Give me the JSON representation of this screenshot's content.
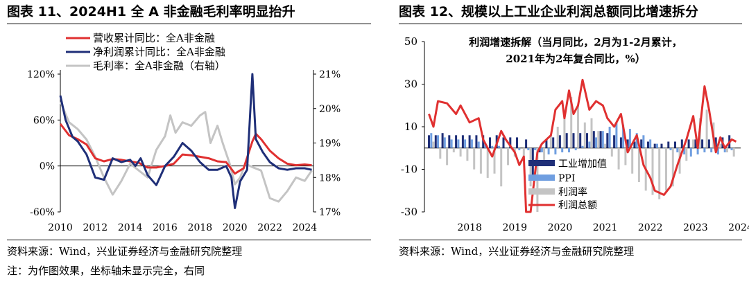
{
  "left": {
    "title": "图表 11、2024H1 全 A 非金融毛利率明显抬升",
    "source": "资料来源：Wind，兴业证券经济与金融研究院整理",
    "note": "注：为作图效果，坐标轴未显示完全，右同"
  },
  "right": {
    "title": "图表 12、规模以上工业企业利润总额同比增速拆分",
    "source": "资料来源：Wind，兴业证券经济与金融研究院整理"
  },
  "colors": {
    "red": "#e03030",
    "navy": "#1f2f78",
    "gray": "#c4c4c4",
    "lightblue": "#6f9ee0"
  },
  "chart_data": [
    {
      "type": "line",
      "xlim": [
        2010,
        2024.5
      ],
      "ylim": [
        -60,
        120
      ],
      "y2lim": [
        17,
        21
      ],
      "x_ticks": [
        "2010",
        "2012",
        "2014",
        "2016",
        "2018",
        "2020",
        "2022",
        "2024"
      ],
      "y_ticks": [
        "120%",
        "60%",
        "0%",
        "-60%"
      ],
      "y2_ticks": [
        "21%",
        "20%",
        "19%",
        "18%",
        "17%"
      ],
      "legend_position": "top-left",
      "series": [
        {
          "name": "营收累计同比：全A非金融",
          "axis": "left",
          "points": [
            [
              2010,
              55
            ],
            [
              2010.5,
              40
            ],
            [
              2011,
              35
            ],
            [
              2011.5,
              28
            ],
            [
              2012,
              10
            ],
            [
              2012.5,
              6
            ],
            [
              2013,
              9
            ],
            [
              2013.5,
              8
            ],
            [
              2014,
              6
            ],
            [
              2014.5,
              4
            ],
            [
              2015,
              -2
            ],
            [
              2015.5,
              -2
            ],
            [
              2016,
              0
            ],
            [
              2016.5,
              3
            ],
            [
              2017,
              15
            ],
            [
              2017.5,
              14
            ],
            [
              2018,
              12
            ],
            [
              2018.5,
              10
            ],
            [
              2019,
              6
            ],
            [
              2019.5,
              5
            ],
            [
              2020,
              -10
            ],
            [
              2020.5,
              -3
            ],
            [
              2021,
              32
            ],
            [
              2021.2,
              42
            ],
            [
              2021.5,
              35
            ],
            [
              2022,
              20
            ],
            [
              2022.5,
              10
            ],
            [
              2023,
              3
            ],
            [
              2023.5,
              1
            ],
            [
              2024,
              2
            ],
            [
              2024.4,
              1
            ]
          ]
        },
        {
          "name": "净利润累计同比：全A非金融",
          "axis": "left",
          "points": [
            [
              2010,
              92
            ],
            [
              2010.3,
              60
            ],
            [
              2010.7,
              38
            ],
            [
              2011,
              32
            ],
            [
              2011.5,
              15
            ],
            [
              2012,
              -15
            ],
            [
              2012.5,
              -18
            ],
            [
              2013,
              10
            ],
            [
              2013.5,
              5
            ],
            [
              2014,
              8
            ],
            [
              2014.3,
              0
            ],
            [
              2014.6,
              10
            ],
            [
              2015,
              -12
            ],
            [
              2015.5,
              -25
            ],
            [
              2016,
              0
            ],
            [
              2016.5,
              12
            ],
            [
              2017,
              30
            ],
            [
              2017.5,
              20
            ],
            [
              2018,
              5
            ],
            [
              2018.5,
              -5
            ],
            [
              2019,
              -5
            ],
            [
              2019.5,
              0
            ],
            [
              2019.8,
              -15
            ],
            [
              2020,
              -55
            ],
            [
              2020.3,
              -20
            ],
            [
              2020.7,
              -5
            ],
            [
              2020.9,
              80
            ],
            [
              2021,
              120
            ],
            [
              2021.2,
              35
            ],
            [
              2021.6,
              18
            ],
            [
              2022,
              5
            ],
            [
              2022.5,
              -3
            ],
            [
              2023,
              -5
            ],
            [
              2023.5,
              -3
            ],
            [
              2024,
              -3
            ],
            [
              2024.4,
              -5
            ]
          ]
        },
        {
          "name": "毛利率：全A非金融（右轴）",
          "axis": "right",
          "points": [
            [
              2010,
              20.2
            ],
            [
              2010.5,
              19.6
            ],
            [
              2011,
              19.4
            ],
            [
              2011.5,
              19.1
            ],
            [
              2012,
              18.6
            ],
            [
              2012.5,
              18.0
            ],
            [
              2013,
              17.5
            ],
            [
              2013.5,
              17.9
            ],
            [
              2014,
              18.4
            ],
            [
              2014.5,
              18.2
            ],
            [
              2015,
              18.0
            ],
            [
              2015.5,
              18.8
            ],
            [
              2016,
              19.2
            ],
            [
              2016.3,
              19.8
            ],
            [
              2016.6,
              19.3
            ],
            [
              2017,
              19.6
            ],
            [
              2017.5,
              19.5
            ],
            [
              2018,
              19.8
            ],
            [
              2018.3,
              19.9
            ],
            [
              2018.6,
              19.0
            ],
            [
              2019,
              19.5
            ],
            [
              2019.3,
              19.0
            ],
            [
              2019.7,
              18.4
            ],
            [
              2020,
              17.8
            ],
            [
              2020.3,
              18.0
            ],
            [
              2020.6,
              18.4
            ],
            [
              2021,
              18.3
            ],
            [
              2021.5,
              18.2
            ],
            [
              2022,
              17.4
            ],
            [
              2022.5,
              17.3
            ],
            [
              2023,
              17.6
            ],
            [
              2023.5,
              18.0
            ],
            [
              2024,
              17.9
            ],
            [
              2024.4,
              18.2
            ]
          ]
        }
      ]
    },
    {
      "type": "bar",
      "title": "利润增速拆解（当月同比，2月为1-2月累计，",
      "subtitle": "2021年为2年复合同比，%）",
      "xlim": [
        2017.5,
        2024.5
      ],
      "ylim": [
        -30,
        50
      ],
      "x_ticks": [
        "2018",
        "2019",
        "2020",
        "2021",
        "2022",
        "2023",
        "2024"
      ],
      "y_ticks": [
        "50",
        "30",
        "10",
        "-10",
        "-30"
      ],
      "legend_position": "bottom-center",
      "series": [
        {
          "name": "工业增加值",
          "kind": "bar",
          "x": [
            2017.6,
            2017.75,
            2017.9,
            2018.05,
            2018.2,
            2018.35,
            2018.5,
            2018.65,
            2018.8,
            2018.95,
            2019.1,
            2019.25,
            2019.4,
            2019.55,
            2019.75,
            2019.9,
            2020.05,
            2020.2,
            2020.35,
            2020.5,
            2020.65,
            2020.8,
            2020.95,
            2021.1,
            2021.25,
            2021.4,
            2021.55,
            2021.7,
            2021.85,
            2022.0,
            2022.15,
            2022.3,
            2022.45,
            2022.6,
            2022.75,
            2022.9,
            2023.05,
            2023.2,
            2023.35,
            2023.5,
            2023.65,
            2023.8,
            2023.95,
            2024.1,
            2024.25
          ],
          "values": [
            6,
            6,
            7,
            6,
            6,
            6,
            6,
            6,
            6,
            5,
            6,
            5,
            5,
            5,
            4,
            -13,
            -2,
            4,
            5,
            6,
            7,
            7,
            7,
            7,
            8,
            8,
            7,
            6,
            5,
            4,
            3,
            4,
            3,
            2,
            2,
            3,
            3,
            4,
            4,
            4,
            4,
            4,
            5,
            5,
            6
          ]
        },
        {
          "name": "PPI",
          "kind": "bar",
          "x": [
            2017.65,
            2017.8,
            2017.95,
            2018.1,
            2018.25,
            2018.4,
            2018.55,
            2018.7,
            2018.85,
            2019.0,
            2019.15,
            2019.3,
            2019.45,
            2019.6,
            2019.8,
            2019.95,
            2020.1,
            2020.25,
            2020.4,
            2020.55,
            2020.7,
            2020.85,
            2021.0,
            2021.15,
            2021.3,
            2021.45,
            2021.6,
            2021.75,
            2021.9,
            2022.05,
            2022.2,
            2022.35,
            2022.5,
            2022.65,
            2022.8,
            2022.95,
            2023.1,
            2023.25,
            2023.4,
            2023.55,
            2023.7,
            2023.85,
            2024.0,
            2024.15,
            2024.3
          ],
          "values": [
            7,
            6,
            5,
            4,
            4,
            4,
            4,
            3,
            2,
            1,
            1,
            0,
            -1,
            -1,
            -1,
            -1,
            -2,
            -3,
            -3,
            -2,
            -2,
            -1,
            1,
            3,
            5,
            8,
            10,
            12,
            11,
            9,
            7,
            6,
            4,
            2,
            0,
            -1,
            -2,
            -3,
            -4,
            -3,
            -2,
            -2,
            -3,
            -2,
            -1
          ]
        },
        {
          "name": "利润率",
          "kind": "bar",
          "x": [
            2017.7,
            2017.85,
            2018.0,
            2018.15,
            2018.3,
            2018.45,
            2018.6,
            2018.75,
            2018.9,
            2019.05,
            2019.2,
            2019.35,
            2019.5,
            2019.7,
            2019.85,
            2020.0,
            2020.15,
            2020.3,
            2020.45,
            2020.6,
            2020.75,
            2020.9,
            2021.05,
            2021.2,
            2021.35,
            2021.5,
            2021.65,
            2021.8,
            2021.95,
            2022.1,
            2022.25,
            2022.4,
            2022.55,
            2022.7,
            2022.85,
            2023.0,
            2023.15,
            2023.3,
            2023.45,
            2023.6,
            2023.75,
            2023.9,
            2024.05,
            2024.2,
            2024.35
          ],
          "values": [
            3,
            -5,
            -8,
            -2,
            -4,
            -6,
            -10,
            -12,
            -14,
            -12,
            -18,
            -8,
            -4,
            -6,
            -18,
            -30,
            -8,
            6,
            10,
            18,
            24,
            20,
            12,
            14,
            8,
            2,
            -4,
            -10,
            -8,
            -12,
            -16,
            -20,
            -22,
            -24,
            -20,
            -18,
            -12,
            -6,
            4,
            14,
            18,
            12,
            2,
            -2,
            -4
          ]
        },
        {
          "name": "利润总额",
          "kind": "line",
          "points": [
            [
              2017.6,
              16
            ],
            [
              2017.7,
              10
            ],
            [
              2017.8,
              22
            ],
            [
              2018.0,
              21
            ],
            [
              2018.2,
              16
            ],
            [
              2018.3,
              20
            ],
            [
              2018.5,
              12
            ],
            [
              2018.7,
              14
            ],
            [
              2018.8,
              4
            ],
            [
              2019.0,
              -4
            ],
            [
              2019.2,
              8
            ],
            [
              2019.3,
              4
            ],
            [
              2019.5,
              -2
            ],
            [
              2019.6,
              -8
            ],
            [
              2019.7,
              -4
            ],
            [
              2019.75,
              -30
            ],
            [
              2019.85,
              -30
            ],
            [
              2020.0,
              -2
            ],
            [
              2020.1,
              2
            ],
            [
              2020.3,
              6
            ],
            [
              2020.4,
              18
            ],
            [
              2020.55,
              22
            ],
            [
              2020.6,
              14
            ],
            [
              2020.7,
              27
            ],
            [
              2020.8,
              16
            ],
            [
              2020.9,
              20
            ],
            [
              2021.0,
              32
            ],
            [
              2021.15,
              18
            ],
            [
              2021.3,
              22
            ],
            [
              2021.45,
              20
            ],
            [
              2021.55,
              14
            ],
            [
              2021.7,
              10
            ],
            [
              2021.85,
              16
            ],
            [
              2022.0,
              -2
            ],
            [
              2022.2,
              6
            ],
            [
              2022.35,
              -8
            ],
            [
              2022.5,
              -14
            ],
            [
              2022.6,
              -20
            ],
            [
              2022.8,
              -22
            ],
            [
              2022.95,
              -18
            ],
            [
              2023.1,
              -8
            ],
            [
              2023.3,
              4
            ],
            [
              2023.45,
              15
            ],
            [
              2023.55,
              0
            ],
            [
              2023.7,
              29
            ],
            [
              2023.8,
              18
            ],
            [
              2023.95,
              -2
            ],
            [
              2024.05,
              5
            ],
            [
              2024.15,
              0
            ],
            [
              2024.3,
              4
            ],
            [
              2024.4,
              3
            ]
          ]
        }
      ]
    }
  ]
}
